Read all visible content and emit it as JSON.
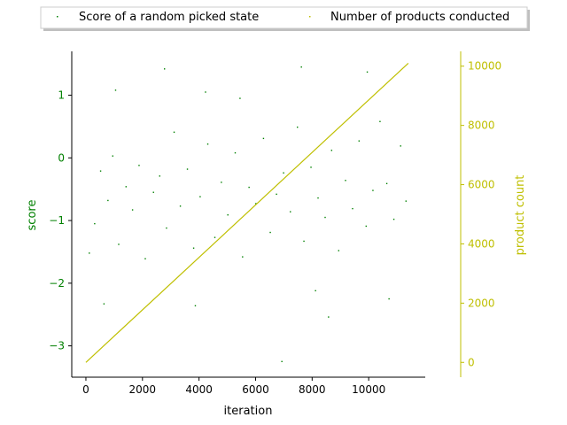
{
  "chart_data": {
    "type": "scatter",
    "xlabel": "iteration",
    "ylabel_left": "score",
    "ylabel_right": "product count",
    "xlim": [
      -500,
      12000
    ],
    "ylim_left": [
      -3.5,
      1.7
    ],
    "ylim_right": [
      -500,
      10500
    ],
    "x_ticks": [
      0,
      2000,
      4000,
      6000,
      8000,
      10000
    ],
    "y_left_ticks": [
      -3,
      -2,
      -1,
      0,
      1
    ],
    "y_right_ticks": [
      0,
      2000,
      4000,
      6000,
      8000,
      10000
    ],
    "x_tick_labels": [
      "0",
      "2000",
      "4000",
      "6000",
      "8000",
      "10000"
    ],
    "y_left_tick_labels": [
      "−3",
      "−2",
      "−1",
      "0",
      "1"
    ],
    "y_right_tick_labels": [
      "0",
      "2000",
      "4000",
      "6000",
      "8000",
      "10000"
    ],
    "legend_position": "top",
    "colors": {
      "score": "#008000",
      "product": "#bfbf00",
      "axis": "#000000"
    },
    "series": [
      {
        "name": "Score of a random picked state",
        "axis": "left",
        "color": "#008000",
        "x": [
          120,
          310,
          520,
          780,
          950,
          1160,
          1420,
          1650,
          1880,
          2100,
          2390,
          2610,
          2850,
          3120,
          3340,
          3590,
          3810,
          4040,
          4310,
          4560,
          4790,
          5020,
          5280,
          5540,
          5770,
          6010,
          6280,
          6520,
          6740,
          6990,
          7230,
          7480,
          7710,
          7960,
          8210,
          8460,
          8690,
          8940,
          9180,
          9430,
          9660,
          9910,
          10150,
          10400,
          10640,
          10890,
          11130,
          11320,
          2780,
          4230,
          6930,
          8580,
          9950,
          1050,
          5450,
          7620,
          3870,
          8120,
          640,
          10720
        ],
        "y": [
          -1.52,
          -1.05,
          -0.21,
          -0.68,
          0.03,
          -1.38,
          -0.46,
          -0.83,
          -0.12,
          -1.61,
          -0.55,
          -0.29,
          -1.12,
          0.41,
          -0.77,
          -0.18,
          -1.44,
          -0.62,
          0.22,
          -1.27,
          -0.39,
          -0.91,
          0.08,
          -1.58,
          -0.47,
          -0.73,
          0.31,
          -1.19,
          -0.58,
          -0.24,
          -0.86,
          0.49,
          -1.33,
          -0.15,
          -0.64,
          -0.95,
          0.12,
          -1.48,
          -0.36,
          -0.81,
          0.27,
          -1.09,
          -0.52,
          0.58,
          -0.41,
          -0.98,
          0.19,
          -0.69,
          1.42,
          1.05,
          -3.25,
          -2.54,
          1.37,
          1.08,
          0.95,
          1.45,
          -2.36,
          -2.12,
          -2.33,
          -2.25
        ]
      },
      {
        "name": "Number of products conducted",
        "axis": "right",
        "color": "#bfbf00",
        "x": [
          0,
          11400
        ],
        "y": [
          0,
          10100
        ]
      }
    ]
  }
}
